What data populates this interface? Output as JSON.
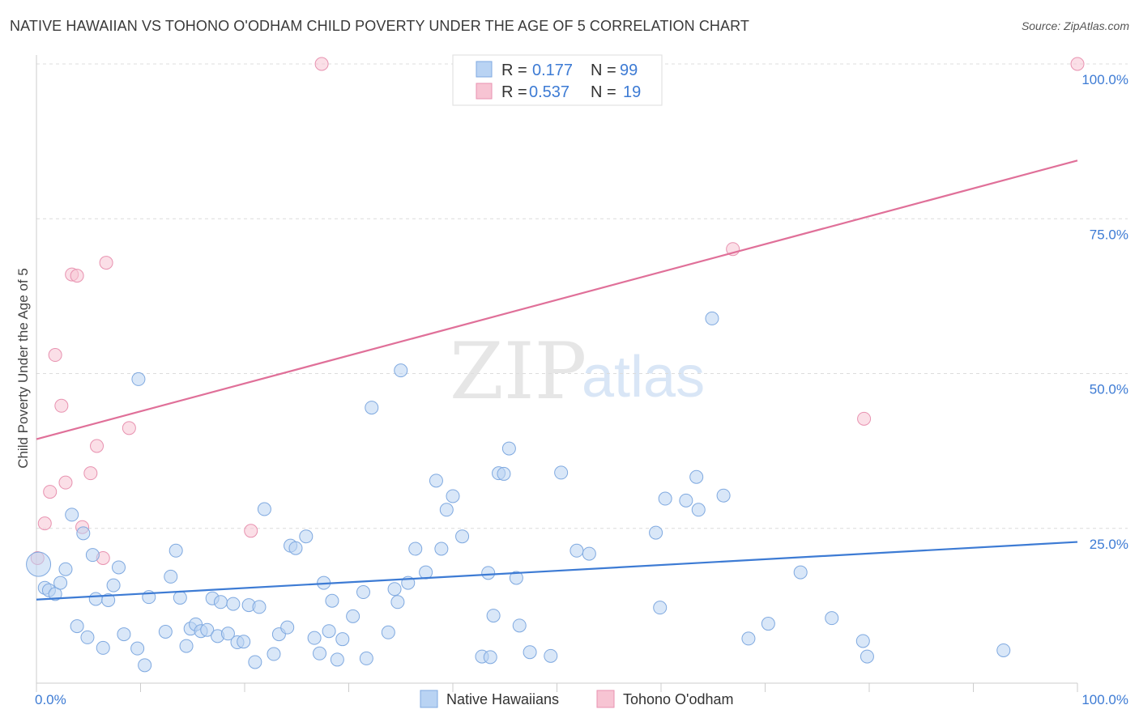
{
  "title": "NATIVE HAWAIIAN VS TOHONO O'ODHAM CHILD POVERTY UNDER THE AGE OF 5 CORRELATION CHART",
  "source": "Source: ZipAtlas.com",
  "watermark": {
    "zip": "ZIP",
    "atlas": "atlas"
  },
  "colors": {
    "blue": "#3d7bd4",
    "blue_fill": "#b9d3f3",
    "pink": "#e07099",
    "pink_fill": "#f7c4d3",
    "grid": "#dcdcdc"
  },
  "legend_box": {
    "rows": [
      {
        "r_label": "R =",
        "r_value": "0.177",
        "n_label": "N =",
        "n_value": "99",
        "series": "blue"
      },
      {
        "r_label": "R =",
        "r_value": "0.537",
        "n_label": "N =",
        "n_value": "19",
        "series": "pink"
      }
    ]
  },
  "chart_data": {
    "type": "scatter",
    "title": "NATIVE HAWAIIAN VS TOHONO O'ODHAM CHILD POVERTY UNDER THE AGE OF 5 CORRELATION CHART",
    "xlabel": "",
    "ylabel": "Child Poverty Under the Age of 5",
    "xlim": [
      0,
      100
    ],
    "ylim": [
      0,
      100
    ],
    "x_tick_labels": [
      "0.0%",
      "100.0%"
    ],
    "y_tick_labels": [
      "25.0%",
      "50.0%",
      "75.0%",
      "100.0%"
    ],
    "y_ticks": [
      25,
      50,
      75,
      100
    ],
    "legend": [
      "Native Hawaiians",
      "Tohono O'odham"
    ],
    "series": [
      {
        "name": "Native Hawaiians",
        "R": 0.177,
        "N": 99,
        "trend": {
          "x": [
            0,
            100
          ],
          "y": [
            13.5,
            22.8
          ]
        },
        "points": [
          [
            0.2,
            19.2
          ],
          [
            0.8,
            15.4
          ],
          [
            1.2,
            15.0
          ],
          [
            1.8,
            14.4
          ],
          [
            2.3,
            16.2
          ],
          [
            2.8,
            18.4
          ],
          [
            3.4,
            27.2
          ],
          [
            3.9,
            9.2
          ],
          [
            4.5,
            24.2
          ],
          [
            4.9,
            7.4
          ],
          [
            5.4,
            20.7
          ],
          [
            5.7,
            13.6
          ],
          [
            6.4,
            5.7
          ],
          [
            6.9,
            13.4
          ],
          [
            7.4,
            15.8
          ],
          [
            7.9,
            18.7
          ],
          [
            8.4,
            7.9
          ],
          [
            9.7,
            5.6
          ],
          [
            9.8,
            49.1
          ],
          [
            10.4,
            2.9
          ],
          [
            10.8,
            13.9
          ],
          [
            12.4,
            8.3
          ],
          [
            12.9,
            17.2
          ],
          [
            13.4,
            21.4
          ],
          [
            13.8,
            13.8
          ],
          [
            14.4,
            6.0
          ],
          [
            14.8,
            8.8
          ],
          [
            15.3,
            9.5
          ],
          [
            15.8,
            8.4
          ],
          [
            16.4,
            8.6
          ],
          [
            16.9,
            13.7
          ],
          [
            17.4,
            7.6
          ],
          [
            17.7,
            13.1
          ],
          [
            18.4,
            8.0
          ],
          [
            18.9,
            12.8
          ],
          [
            19.3,
            6.6
          ],
          [
            19.9,
            6.7
          ],
          [
            20.4,
            12.6
          ],
          [
            21.0,
            3.4
          ],
          [
            21.4,
            12.3
          ],
          [
            21.9,
            28.1
          ],
          [
            22.8,
            4.7
          ],
          [
            23.3,
            7.9
          ],
          [
            24.1,
            9.0
          ],
          [
            24.4,
            22.2
          ],
          [
            24.9,
            21.8
          ],
          [
            25.9,
            23.7
          ],
          [
            26.7,
            7.3
          ],
          [
            27.2,
            4.8
          ],
          [
            27.6,
            16.2
          ],
          [
            28.1,
            8.4
          ],
          [
            28.4,
            13.3
          ],
          [
            28.9,
            3.8
          ],
          [
            29.4,
            7.1
          ],
          [
            30.4,
            10.8
          ],
          [
            31.4,
            14.7
          ],
          [
            31.7,
            4.0
          ],
          [
            32.2,
            44.5
          ],
          [
            33.8,
            8.2
          ],
          [
            34.4,
            15.2
          ],
          [
            34.7,
            13.1
          ],
          [
            35.0,
            50.5
          ],
          [
            35.7,
            16.2
          ],
          [
            36.4,
            21.7
          ],
          [
            37.4,
            17.9
          ],
          [
            38.4,
            32.7
          ],
          [
            38.9,
            21.7
          ],
          [
            39.4,
            28.0
          ],
          [
            40.0,
            30.2
          ],
          [
            40.9,
            23.7
          ],
          [
            42.8,
            4.3
          ],
          [
            43.4,
            17.8
          ],
          [
            43.6,
            4.2
          ],
          [
            43.9,
            10.9
          ],
          [
            44.4,
            33.9
          ],
          [
            44.9,
            33.8
          ],
          [
            45.4,
            37.9
          ],
          [
            46.1,
            17.0
          ],
          [
            46.4,
            9.3
          ],
          [
            47.4,
            5.0
          ],
          [
            49.4,
            4.4
          ],
          [
            50.4,
            34.0
          ],
          [
            51.9,
            21.4
          ],
          [
            53.1,
            20.9
          ],
          [
            59.5,
            24.3
          ],
          [
            59.9,
            12.2
          ],
          [
            60.4,
            29.8
          ],
          [
            62.4,
            29.5
          ],
          [
            63.4,
            33.3
          ],
          [
            63.6,
            28.0
          ],
          [
            64.9,
            58.9
          ],
          [
            66.0,
            30.3
          ],
          [
            68.4,
            7.2
          ],
          [
            70.3,
            9.6
          ],
          [
            73.4,
            17.9
          ],
          [
            76.4,
            10.5
          ],
          [
            79.4,
            6.8
          ],
          [
            79.8,
            4.3
          ],
          [
            92.9,
            5.3
          ]
        ]
      },
      {
        "name": "Tohono O'odham",
        "R": 0.537,
        "N": 19,
        "trend": {
          "x": [
            0,
            100
          ],
          "y": [
            39.4,
            84.4
          ]
        },
        "points": [
          [
            0.1,
            20.2
          ],
          [
            0.8,
            25.8
          ],
          [
            1.3,
            30.9
          ],
          [
            1.8,
            53.0
          ],
          [
            2.4,
            44.8
          ],
          [
            2.8,
            32.4
          ],
          [
            3.4,
            66.0
          ],
          [
            3.9,
            65.8
          ],
          [
            4.4,
            25.2
          ],
          [
            5.2,
            33.9
          ],
          [
            5.8,
            38.3
          ],
          [
            6.4,
            20.2
          ],
          [
            6.7,
            67.9
          ],
          [
            8.9,
            41.2
          ],
          [
            20.6,
            24.6
          ],
          [
            27.4,
            100
          ],
          [
            66.9,
            70.1
          ],
          [
            79.5,
            42.7
          ],
          [
            100,
            100
          ]
        ]
      }
    ]
  }
}
